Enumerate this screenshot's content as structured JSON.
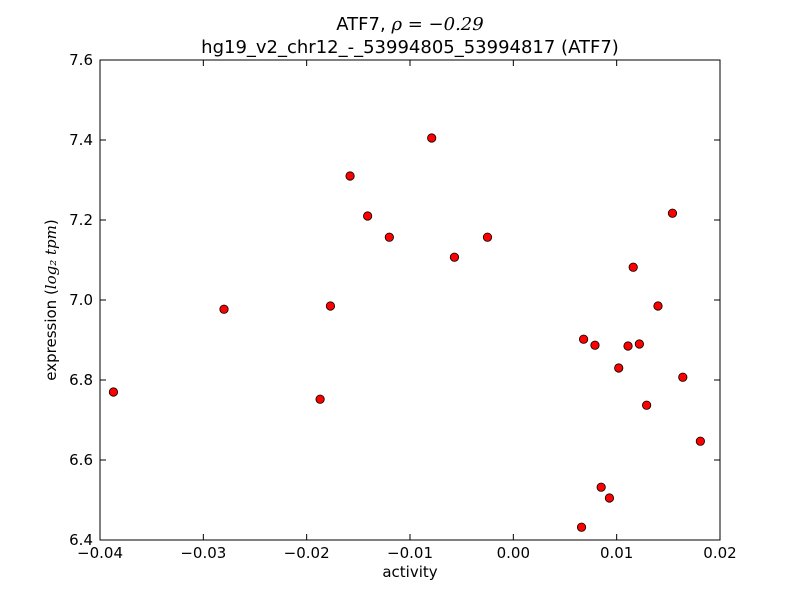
{
  "chart_data": {
    "type": "scatter",
    "title_line1_prefix": "ATF7, ",
    "title_line1_math": "ρ = −0.29",
    "title_line2": "hg19_v2_chr12_-_53994805_53994817 (ATF7)",
    "xlabel": "activity",
    "ylabel_prefix": "expression (",
    "ylabel_math": "log₂ tpm",
    "ylabel_suffix": ")",
    "xlim": [
      -0.04,
      0.02
    ],
    "ylim": [
      6.4,
      7.6
    ],
    "x_ticks": [
      -0.04,
      -0.03,
      -0.02,
      -0.01,
      0.0,
      0.01,
      0.02
    ],
    "x_tick_labels": [
      "−0.04",
      "−0.03",
      "−0.02",
      "−0.01",
      "0.00",
      "0.01",
      "0.02"
    ],
    "y_ticks": [
      6.4,
      6.6,
      6.8,
      7.0,
      7.2,
      7.4,
      7.6
    ],
    "y_tick_labels": [
      "6.4",
      "6.6",
      "6.8",
      "7.0",
      "7.2",
      "7.4",
      "7.6"
    ],
    "grid": false,
    "marker_color": "#ff0000",
    "points": [
      {
        "x": -0.0387,
        "y": 6.77
      },
      {
        "x": -0.028,
        "y": 6.977
      },
      {
        "x": -0.0187,
        "y": 6.752
      },
      {
        "x": -0.0177,
        "y": 6.985
      },
      {
        "x": -0.0158,
        "y": 7.31
      },
      {
        "x": -0.0141,
        "y": 7.21
      },
      {
        "x": -0.012,
        "y": 7.157
      },
      {
        "x": -0.0079,
        "y": 7.405
      },
      {
        "x": -0.0057,
        "y": 7.107
      },
      {
        "x": -0.0025,
        "y": 7.157
      },
      {
        "x": 0.0066,
        "y": 6.432
      },
      {
        "x": 0.0068,
        "y": 6.902
      },
      {
        "x": 0.0079,
        "y": 6.887
      },
      {
        "x": 0.0085,
        "y": 6.532
      },
      {
        "x": 0.0093,
        "y": 6.505
      },
      {
        "x": 0.0102,
        "y": 6.83
      },
      {
        "x": 0.0111,
        "y": 6.885
      },
      {
        "x": 0.0116,
        "y": 7.082
      },
      {
        "x": 0.0122,
        "y": 6.89
      },
      {
        "x": 0.0129,
        "y": 6.737
      },
      {
        "x": 0.014,
        "y": 6.985
      },
      {
        "x": 0.0154,
        "y": 7.217
      },
      {
        "x": 0.0164,
        "y": 6.807
      },
      {
        "x": 0.0181,
        "y": 6.647
      }
    ]
  }
}
